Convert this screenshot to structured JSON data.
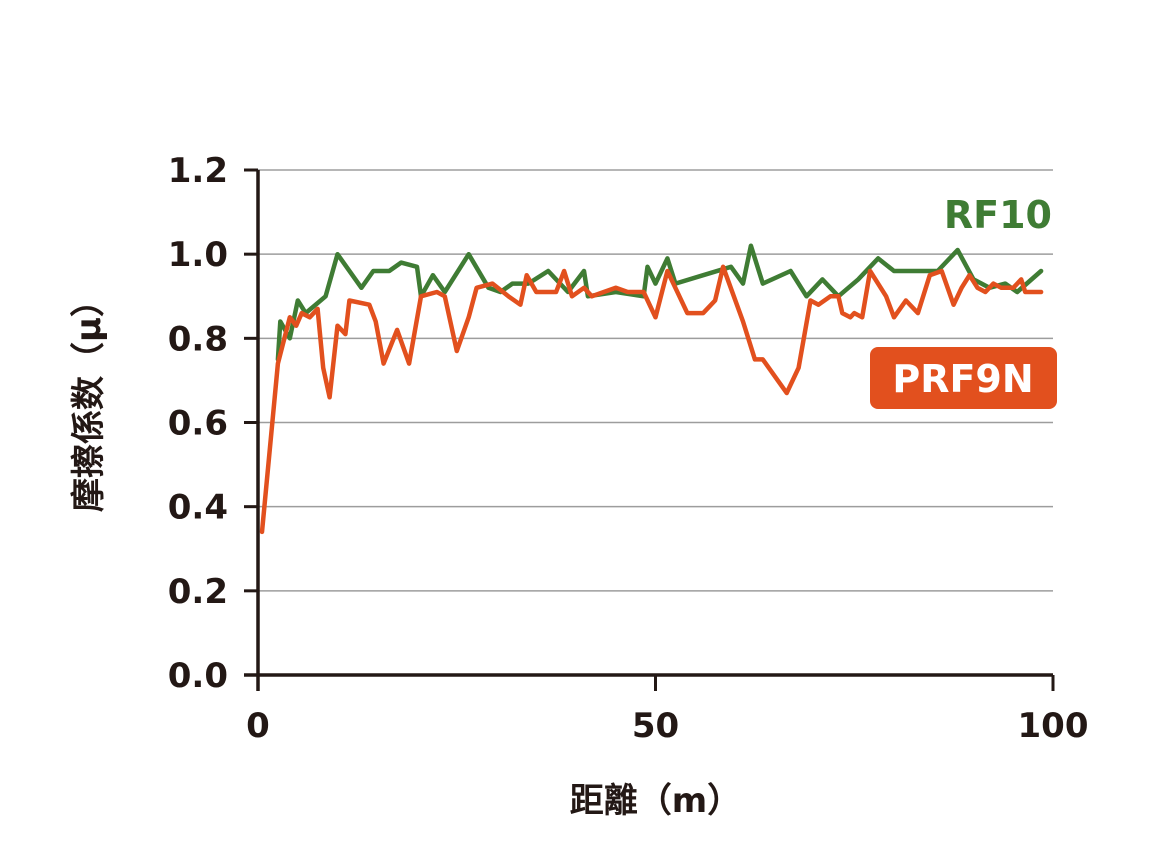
{
  "chart_data": {
    "type": "line",
    "title": "",
    "xlabel": "距離（m）",
    "ylabel": "摩擦係数（μ）",
    "xlim": [
      0,
      100
    ],
    "ylim": [
      0.0,
      1.2
    ],
    "x_ticks": [
      "0",
      "50",
      "100"
    ],
    "y_ticks": [
      "0.0",
      "0.2",
      "0.4",
      "0.6",
      "0.8",
      "1.0",
      "1.2"
    ],
    "grid": "horizontal",
    "legend": "inline labels at right",
    "series": [
      {
        "name": "RF10",
        "color": "#3f7c34",
        "label_style": "text",
        "points": [
          [
            2.5,
            0.75
          ],
          [
            2.8,
            0.84
          ],
          [
            4.0,
            0.8
          ],
          [
            5.0,
            0.89
          ],
          [
            6.0,
            0.86
          ],
          [
            8.5,
            0.9
          ],
          [
            10.0,
            1.0
          ],
          [
            13.0,
            0.92
          ],
          [
            14.5,
            0.96
          ],
          [
            16.5,
            0.96
          ],
          [
            18.0,
            0.98
          ],
          [
            20.0,
            0.97
          ],
          [
            20.5,
            0.9
          ],
          [
            22.0,
            0.95
          ],
          [
            23.5,
            0.91
          ],
          [
            26.5,
            1.0
          ],
          [
            29.0,
            0.92
          ],
          [
            30.5,
            0.91
          ],
          [
            32.0,
            0.93
          ],
          [
            34.0,
            0.93
          ],
          [
            36.5,
            0.96
          ],
          [
            39.0,
            0.91
          ],
          [
            41.0,
            0.96
          ],
          [
            41.5,
            0.9
          ],
          [
            45.0,
            0.91
          ],
          [
            48.5,
            0.9
          ],
          [
            49.0,
            0.97
          ],
          [
            50.0,
            0.93
          ],
          [
            51.5,
            0.99
          ],
          [
            52.5,
            0.93
          ],
          [
            56.0,
            0.95
          ],
          [
            59.5,
            0.97
          ],
          [
            61.0,
            0.93
          ],
          [
            62.0,
            1.02
          ],
          [
            63.5,
            0.93
          ],
          [
            67.0,
            0.96
          ],
          [
            69.0,
            0.9
          ],
          [
            71.0,
            0.94
          ],
          [
            73.0,
            0.9
          ],
          [
            75.5,
            0.94
          ],
          [
            78.0,
            0.99
          ],
          [
            80.0,
            0.96
          ],
          [
            85.5,
            0.96
          ],
          [
            88.0,
            1.01
          ],
          [
            90.0,
            0.94
          ],
          [
            92.0,
            0.92
          ],
          [
            94.0,
            0.93
          ],
          [
            95.5,
            0.91
          ],
          [
            98.5,
            0.96
          ]
        ]
      },
      {
        "name": "PRF9N",
        "color": "#e2501e",
        "label_style": "badge",
        "points": [
          [
            0.5,
            0.34
          ],
          [
            2.5,
            0.74
          ],
          [
            4.0,
            0.85
          ],
          [
            4.8,
            0.83
          ],
          [
            5.5,
            0.86
          ],
          [
            6.5,
            0.85
          ],
          [
            7.5,
            0.87
          ],
          [
            8.2,
            0.73
          ],
          [
            9.0,
            0.66
          ],
          [
            10.0,
            0.83
          ],
          [
            11.0,
            0.81
          ],
          [
            11.5,
            0.89
          ],
          [
            14.0,
            0.88
          ],
          [
            14.8,
            0.84
          ],
          [
            15.8,
            0.74
          ],
          [
            17.5,
            0.82
          ],
          [
            19.0,
            0.74
          ],
          [
            20.5,
            0.9
          ],
          [
            22.5,
            0.91
          ],
          [
            23.5,
            0.9
          ],
          [
            25.0,
            0.77
          ],
          [
            26.5,
            0.85
          ],
          [
            27.5,
            0.92
          ],
          [
            29.5,
            0.93
          ],
          [
            31.5,
            0.9
          ],
          [
            33.0,
            0.88
          ],
          [
            33.8,
            0.95
          ],
          [
            35.0,
            0.91
          ],
          [
            37.5,
            0.91
          ],
          [
            38.5,
            0.96
          ],
          [
            39.5,
            0.9
          ],
          [
            41.0,
            0.92
          ],
          [
            42.0,
            0.9
          ],
          [
            43.5,
            0.91
          ],
          [
            45.0,
            0.92
          ],
          [
            46.5,
            0.91
          ],
          [
            48.5,
            0.91
          ],
          [
            50.0,
            0.85
          ],
          [
            51.5,
            0.96
          ],
          [
            53.0,
            0.9
          ],
          [
            54.0,
            0.86
          ],
          [
            56.0,
            0.86
          ],
          [
            57.5,
            0.89
          ],
          [
            58.5,
            0.97
          ],
          [
            61.0,
            0.84
          ],
          [
            62.5,
            0.75
          ],
          [
            63.5,
            0.75
          ],
          [
            66.5,
            0.67
          ],
          [
            68.0,
            0.73
          ],
          [
            69.5,
            0.89
          ],
          [
            70.5,
            0.88
          ],
          [
            72.0,
            0.9
          ],
          [
            73.0,
            0.9
          ],
          [
            73.5,
            0.86
          ],
          [
            74.5,
            0.85
          ],
          [
            75.0,
            0.86
          ],
          [
            76.0,
            0.85
          ],
          [
            77.0,
            0.96
          ],
          [
            79.0,
            0.9
          ],
          [
            80.0,
            0.85
          ],
          [
            81.5,
            0.89
          ],
          [
            83.0,
            0.86
          ],
          [
            84.5,
            0.95
          ],
          [
            86.0,
            0.96
          ],
          [
            87.5,
            0.88
          ],
          [
            88.5,
            0.92
          ],
          [
            89.5,
            0.95
          ],
          [
            90.5,
            0.92
          ],
          [
            91.5,
            0.91
          ],
          [
            92.5,
            0.93
          ],
          [
            93.5,
            0.92
          ],
          [
            95.0,
            0.92
          ],
          [
            96.0,
            0.94
          ],
          [
            96.5,
            0.91
          ],
          [
            98.5,
            0.91
          ]
        ]
      }
    ]
  }
}
